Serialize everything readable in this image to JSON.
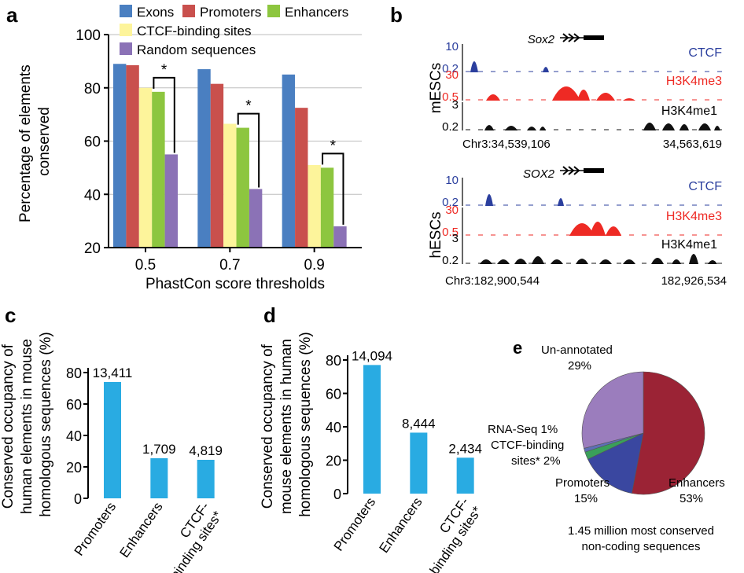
{
  "panels": {
    "a": {
      "letter": "a"
    },
    "b": {
      "letter": "b"
    },
    "c": {
      "letter": "c"
    },
    "d": {
      "letter": "d"
    },
    "e": {
      "letter": "e"
    }
  },
  "colors": {
    "exons": "#4a7fc1",
    "promoters": "#c9504d",
    "enhancers": "#8dc63f",
    "ctcf": "#fdf49b",
    "random": "#8b72b6",
    "bar_cd": "#29abe2",
    "track_blue": "#2b3f9e",
    "track_red": "#ee2a24",
    "track_black": "#111111",
    "pie_enhancers": "#9b2335",
    "pie_promoters": "#3a47a0",
    "pie_ctcf": "#3aa05a",
    "pie_rnaseq": "#5d6fb5",
    "pie_unannotated": "#9b7dbd"
  },
  "chart_data": [
    {
      "id": "a",
      "type": "bar",
      "ylabel": "Percentage of elements conserved",
      "xlabel": "PhastCon score thresholds",
      "ylim": [
        20,
        100
      ],
      "yticks": [
        "20",
        "40",
        "60",
        "80",
        "100"
      ],
      "categories": [
        "0.5",
        "0.7",
        "0.9"
      ],
      "series": [
        {
          "name": "Exons",
          "values": [
            89,
            87,
            85
          ]
        },
        {
          "name": "Promoters",
          "values": [
            88.5,
            81.5,
            72.5
          ]
        },
        {
          "name": "CTCF-binding sites",
          "values": [
            80,
            66.5,
            51
          ]
        },
        {
          "name": "Enhancers",
          "values": [
            78.5,
            65,
            50
          ]
        },
        {
          "name": "Random sequences",
          "values": [
            55,
            42,
            28
          ]
        }
      ],
      "significance": [
        "*",
        "*",
        "*"
      ],
      "legend": "top"
    },
    {
      "id": "c",
      "type": "bar",
      "ylabel": "Conserved occupancy of human elements in mouse homologous sequences (%)",
      "ylim": [
        0,
        80
      ],
      "yticks": [
        "0",
        "20",
        "40",
        "60",
        "80"
      ],
      "categories": [
        "Promoters",
        "Enhancers",
        "CTCF-binding sites*"
      ],
      "values": [
        74,
        25.5,
        24.5
      ],
      "data_labels": [
        "13,411",
        "1,709",
        "4,819"
      ]
    },
    {
      "id": "d",
      "type": "bar",
      "ylabel": "Conserved occupancy of mouse elements in human homologous sequences (%)",
      "ylim": [
        0,
        80
      ],
      "yticks": [
        "0",
        "20",
        "40",
        "60",
        "80"
      ],
      "categories": [
        "Promoters",
        "Enhancers",
        "CTCF-binding sites*"
      ],
      "values": [
        77,
        36.5,
        21.5
      ],
      "data_labels": [
        "14,094",
        "8,444",
        "2,434"
      ]
    },
    {
      "id": "e",
      "type": "pie",
      "slices": [
        {
          "label": "Enhancers",
          "pct": "53%",
          "value": 53
        },
        {
          "label": "Promoters",
          "pct": "15%",
          "value": 15
        },
        {
          "label": "CTCF-binding sites*",
          "pct": "2%",
          "value": 2
        },
        {
          "label": "RNA-Seq",
          "pct": "1%",
          "value": 1
        },
        {
          "label": "Un-annotated",
          "pct": "29%",
          "value": 29
        }
      ],
      "caption_line1": "1.45 million most conserved",
      "caption_line2": "non-coding sequences"
    }
  ],
  "tracks": {
    "mouse": {
      "gene": "Sox2",
      "cell": "mESCs",
      "locus_left": "Chr3:34,539,106",
      "locus_right": "34,563,619",
      "rows": [
        {
          "name": "CTCF",
          "top": "10",
          "bottom": "0.2"
        },
        {
          "name": "H3K4me3",
          "top": "30",
          "bottom": "0.5"
        },
        {
          "name": "H3K4me1",
          "top": "3",
          "bottom": "0.2"
        }
      ]
    },
    "human": {
      "gene": "SOX2",
      "cell": "hESCs",
      "locus_left": "Chr3:182,900,544",
      "locus_right": "182,926,534",
      "rows": [
        {
          "name": "CTCF",
          "top": "10",
          "bottom": "0.2"
        },
        {
          "name": "H3K4me3",
          "top": "30",
          "bottom": "0.5"
        },
        {
          "name": "H3K4me1",
          "top": "3",
          "bottom": "0.2"
        }
      ]
    }
  }
}
